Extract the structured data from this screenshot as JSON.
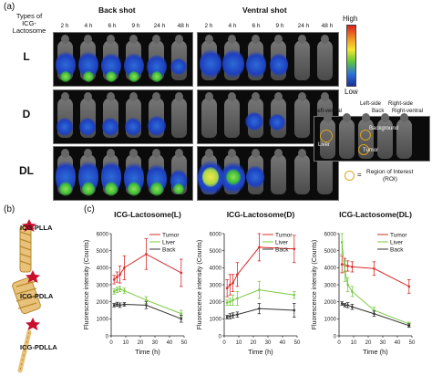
{
  "panel_a": {
    "label": "(a)",
    "types_label_line1": "Types of",
    "types_label_line2": "ICG-",
    "types_label_line3": "Lactosome",
    "back_shot": "Back shot",
    "ventral_shot": "Ventral shot",
    "time_points": [
      "2 h",
      "4 h",
      "6 h",
      "9 h",
      "24 h",
      "48 h"
    ],
    "rows": [
      "L",
      "D",
      "DL"
    ],
    "colorbar_high": "High",
    "colorbar_low": "Low",
    "roi": {
      "left_side": "Left-side",
      "left_ventral": "Left-ventral",
      "back": "Back",
      "right_side": "Right-side",
      "right_ventral": "Right-ventral",
      "liver": "Liver",
      "background": "Background",
      "tumor": "Tumor",
      "legend_eq": "=",
      "legend_line1": "Region of Interest",
      "legend_line2": "(ROI)"
    }
  },
  "panel_b": {
    "label": "(b)",
    "compounds": [
      "ICG-PLLA",
      "ICG-PDLA",
      "ICG-PDLLA"
    ]
  },
  "panel_c": {
    "label": "(c)"
  },
  "colors": {
    "tumor": "#d92b2b",
    "liver": "#7ac943",
    "back": "#333333",
    "star": "#c8102e"
  },
  "chart_data": [
    {
      "type": "line",
      "title": "ICG-Lactosome(L)",
      "xlabel": "Time (h)",
      "ylabel": "Fluorescence intensity (Counts)",
      "xlim": [
        0,
        50
      ],
      "ylim": [
        0,
        6000
      ],
      "xticks": [
        0,
        10,
        20,
        30,
        40,
        50
      ],
      "yticks": [
        0,
        1000,
        2000,
        3000,
        4000,
        5000,
        6000
      ],
      "x": [
        2,
        4,
        6,
        9,
        24,
        48
      ],
      "series": [
        {
          "name": "Tumor",
          "values": [
            3300,
            3450,
            3600,
            4000,
            4800,
            3700
          ],
          "err": [
            250,
            300,
            500,
            700,
            900,
            800
          ]
        },
        {
          "name": "Liver",
          "values": [
            2600,
            2700,
            2750,
            2650,
            2100,
            1300
          ],
          "err": [
            150,
            150,
            150,
            150,
            200,
            200
          ]
        },
        {
          "name": "Back",
          "values": [
            1800,
            1850,
            1800,
            1850,
            1800,
            1000
          ],
          "err": [
            100,
            120,
            130,
            100,
            200,
            200
          ]
        }
      ]
    },
    {
      "type": "line",
      "title": "ICG-Lactosome(D)",
      "xlabel": "Time (h)",
      "ylabel": "Fluorescence intensity (Counts)",
      "xlim": [
        0,
        50
      ],
      "ylim": [
        0,
        6000
      ],
      "xticks": [
        0,
        10,
        20,
        30,
        40,
        50
      ],
      "yticks": [
        0,
        1000,
        2000,
        3000,
        4000,
        5000,
        6000
      ],
      "x": [
        2,
        4,
        6,
        9,
        24,
        48
      ],
      "series": [
        {
          "name": "Tumor",
          "values": [
            2800,
            3000,
            3100,
            3600,
            5200,
            5100
          ],
          "err": [
            500,
            600,
            500,
            700,
            800,
            800
          ]
        },
        {
          "name": "Liver",
          "values": [
            1950,
            2000,
            2100,
            2200,
            2700,
            2400
          ],
          "err": [
            150,
            200,
            300,
            400,
            500,
            200
          ]
        },
        {
          "name": "Back",
          "values": [
            1100,
            1150,
            1200,
            1250,
            1600,
            1500
          ],
          "err": [
            100,
            150,
            150,
            150,
            300,
            400
          ]
        }
      ]
    },
    {
      "type": "line",
      "title": "ICG-Lactosome(DL)",
      "xlabel": "Time (h)",
      "ylabel": "Fluorescence intensity (Counts)",
      "xlim": [
        0,
        50
      ],
      "ylim": [
        0,
        6000
      ],
      "xticks": [
        0,
        10,
        20,
        30,
        40,
        50
      ],
      "yticks": [
        0,
        1000,
        2000,
        3000,
        4000,
        5000,
        6000
      ],
      "x": [
        2,
        4,
        6,
        9,
        24,
        48
      ],
      "series": [
        {
          "name": "Tumor",
          "values": [
            4200,
            4150,
            4100,
            4050,
            3950,
            2900
          ],
          "err": [
            500,
            400,
            300,
            300,
            400,
            400
          ]
        },
        {
          "name": "Liver",
          "values": [
            5500,
            3800,
            3000,
            2600,
            1500,
            700
          ],
          "err": [
            700,
            600,
            400,
            300,
            200,
            100
          ]
        },
        {
          "name": "Back",
          "values": [
            1900,
            1800,
            1800,
            1700,
            1300,
            600
          ],
          "err": [
            100,
            100,
            150,
            150,
            150,
            100
          ]
        }
      ]
    }
  ]
}
